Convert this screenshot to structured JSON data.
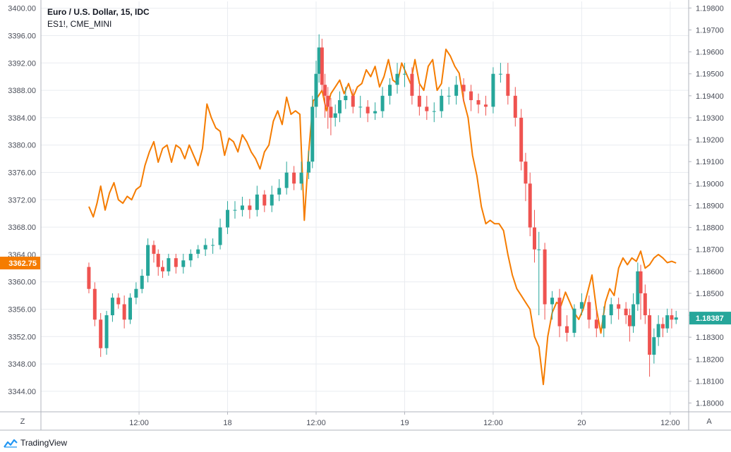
{
  "legend": {
    "main_series": "Euro / U.S. Dollar, 15, IDC",
    "compare_series": "ES1!, CME_MINI"
  },
  "brand": {
    "name": "TradingView",
    "logo_icon": "tradingview-logo-icon"
  },
  "controls": {
    "left_corner": "Z",
    "right_corner": "A"
  },
  "colors": {
    "up": "#26a69a",
    "down": "#ef5350",
    "compare_line": "#f57c00",
    "grid": "#e9ecf0",
    "axis_line": "#b2b5be",
    "left_badge_bg": "#f57c00",
    "right_badge_bg": "#26a69a"
  },
  "chart_data": {
    "type": "line",
    "title": "Euro / U.S. Dollar, 15, IDC",
    "left_axis": {
      "ticks": [
        "3400.00",
        "3396.00",
        "3392.00",
        "3388.00",
        "3384.00",
        "3380.00",
        "3376.00",
        "3372.00",
        "3368.00",
        "3364.00",
        "3360.00",
        "3356.00",
        "3352.00",
        "3348.00",
        "3344.00"
      ],
      "range": [
        3341,
        3401
      ],
      "current_label": "3362.75"
    },
    "right_axis": {
      "ticks": [
        "1.19800",
        "1.19700",
        "1.19600",
        "1.19500",
        "1.19400",
        "1.19300",
        "1.19200",
        "1.19100",
        "1.19000",
        "1.18900",
        "1.18800",
        "1.18700",
        "1.18600",
        "1.18500",
        "1.18400",
        "1.18300",
        "1.18200",
        "1.18100",
        "1.18000"
      ],
      "range": [
        1.1796,
        1.1983
      ],
      "current_label": "1.18387"
    },
    "x_axis": {
      "ticks": [
        "12:00",
        "18",
        "12:00",
        "19",
        "12:00",
        "20",
        "12:00"
      ],
      "tick_hours": [
        12,
        24,
        36,
        48,
        60,
        72,
        84
      ],
      "range_hours": [
        -1.3,
        86.5
      ]
    },
    "grid": true,
    "series": [
      {
        "name": "Euro / U.S. Dollar, 15, IDC",
        "style": "candlestick",
        "axis": "right",
        "x": [
          5.2,
          6.0,
          6.8,
          7.6,
          8.4,
          9.2,
          10.0,
          10.8,
          11.6,
          12.4,
          13.2,
          14.0,
          14.6,
          15.2,
          16.0,
          17.0,
          18.0,
          19.0,
          20.0,
          21.0,
          22.0,
          23.0,
          24.0,
          25.0,
          26.0,
          27.0,
          28.0,
          29.0,
          30.0,
          31.0,
          32.0,
          33.0,
          34.0,
          35.0,
          35.5,
          36.0,
          36.4,
          36.8,
          37.2,
          37.6,
          38.0,
          38.6,
          39.2,
          40.0,
          41.0,
          42.0,
          43.0,
          44.0,
          45.0,
          46.0,
          47.0,
          48.0,
          49.0,
          50.0,
          51.0,
          52.0,
          53.0,
          54.0,
          55.0,
          56.0,
          57.0,
          58.0,
          59.0,
          60.0,
          61.0,
          62.0,
          63.0,
          63.8,
          64.4,
          65.0,
          65.6,
          66.2,
          67.0,
          68.0,
          69.0,
          70.0,
          71.0,
          72.0,
          73.0,
          74.0,
          75.0,
          76.0,
          77.0,
          78.0,
          78.5,
          79.0,
          79.6,
          80.0,
          80.6,
          81.2,
          81.8,
          82.4,
          83.0,
          83.6,
          84.2,
          84.8
        ],
        "open": [
          1.1862,
          1.1852,
          1.1838,
          1.1825,
          1.184,
          1.1848,
          1.1845,
          1.1838,
          1.1848,
          1.1852,
          1.1858,
          1.1872,
          1.1868,
          1.1862,
          1.186,
          1.1866,
          1.1862,
          1.1865,
          1.1868,
          1.187,
          1.1872,
          1.1872,
          1.188,
          1.1888,
          1.1888,
          1.189,
          1.1888,
          1.1895,
          1.189,
          1.1895,
          1.1898,
          1.1905,
          1.19,
          1.1905,
          1.191,
          1.1935,
          1.195,
          1.1962,
          1.1945,
          1.194,
          1.1935,
          1.193,
          1.1932,
          1.1938,
          1.194,
          1.1935,
          1.1935,
          1.1932,
          1.1933,
          1.194,
          1.1945,
          1.195,
          1.195,
          1.194,
          1.1935,
          1.1933,
          1.1933,
          1.194,
          1.194,
          1.1945,
          1.1942,
          1.1938,
          1.1936,
          1.1935,
          1.195,
          1.195,
          1.194,
          1.193,
          1.191,
          1.19,
          1.188,
          1.187,
          1.187,
          1.1845,
          1.1848,
          1.1835,
          1.1832,
          1.1843,
          1.1846,
          1.1838,
          1.1834,
          1.184,
          1.1845,
          1.1843,
          1.184,
          1.1835,
          1.1845,
          1.186,
          1.185,
          1.184,
          1.1822,
          1.183,
          1.1836,
          1.1834,
          1.184,
          1.1838
        ],
        "close": [
          1.1852,
          1.1838,
          1.1825,
          1.184,
          1.1848,
          1.1845,
          1.1838,
          1.1848,
          1.1852,
          1.1858,
          1.1872,
          1.1868,
          1.1862,
          1.186,
          1.1866,
          1.1862,
          1.1865,
          1.1868,
          1.187,
          1.1872,
          1.1872,
          1.188,
          1.1888,
          1.1888,
          1.189,
          1.1888,
          1.1895,
          1.189,
          1.1895,
          1.1898,
          1.1905,
          1.19,
          1.1905,
          1.191,
          1.1935,
          1.195,
          1.1962,
          1.1945,
          1.194,
          1.1935,
          1.193,
          1.1932,
          1.1938,
          1.194,
          1.1935,
          1.1935,
          1.1932,
          1.1933,
          1.194,
          1.1945,
          1.195,
          1.195,
          1.194,
          1.1935,
          1.1933,
          1.1933,
          1.194,
          1.194,
          1.1945,
          1.1942,
          1.1938,
          1.1936,
          1.1935,
          1.195,
          1.195,
          1.194,
          1.193,
          1.191,
          1.19,
          1.188,
          1.187,
          1.187,
          1.1845,
          1.1848,
          1.1835,
          1.1832,
          1.1843,
          1.1846,
          1.1838,
          1.1834,
          1.184,
          1.1845,
          1.1843,
          1.184,
          1.1835,
          1.1845,
          1.186,
          1.185,
          1.184,
          1.1822,
          1.183,
          1.1836,
          1.1834,
          1.184,
          1.1838,
          1.1839
        ],
        "high": [
          1.1864,
          1.1855,
          1.1841,
          1.1842,
          1.185,
          1.185,
          1.1849,
          1.185,
          1.1855,
          1.1861,
          1.1875,
          1.1874,
          1.187,
          1.1865,
          1.1868,
          1.1868,
          1.1868,
          1.187,
          1.1872,
          1.1875,
          1.1875,
          1.1884,
          1.1892,
          1.1892,
          1.1894,
          1.1893,
          1.1899,
          1.1897,
          1.1899,
          1.1902,
          1.191,
          1.1908,
          1.191,
          1.1915,
          1.194,
          1.1956,
          1.1968,
          1.1966,
          1.195,
          1.1944,
          1.1939,
          1.1936,
          1.1942,
          1.1944,
          1.1943,
          1.194,
          1.1938,
          1.1937,
          1.1944,
          1.1948,
          1.1955,
          1.1955,
          1.1953,
          1.1945,
          1.194,
          1.1937,
          1.1943,
          1.1944,
          1.1949,
          1.1948,
          1.1945,
          1.1941,
          1.194,
          1.1953,
          1.1955,
          1.1955,
          1.1944,
          1.1934,
          1.1914,
          1.1905,
          1.1888,
          1.1878,
          1.1873,
          1.1851,
          1.1852,
          1.184,
          1.1845,
          1.185,
          1.1849,
          1.1842,
          1.1844,
          1.1848,
          1.1848,
          1.1846,
          1.1843,
          1.185,
          1.1864,
          1.1863,
          1.1854,
          1.1843,
          1.1834,
          1.184,
          1.1839,
          1.1843,
          1.1843,
          1.1842
        ],
        "low": [
          1.185,
          1.1835,
          1.1821,
          1.1822,
          1.1837,
          1.1843,
          1.1834,
          1.1836,
          1.1845,
          1.185,
          1.1855,
          1.1864,
          1.1858,
          1.1857,
          1.1858,
          1.1859,
          1.1859,
          1.1862,
          1.1866,
          1.1867,
          1.1868,
          1.187,
          1.1877,
          1.1884,
          1.1885,
          1.1884,
          1.1885,
          1.1887,
          1.1887,
          1.1892,
          1.1895,
          1.1897,
          1.1897,
          1.1902,
          1.1907,
          1.193,
          1.1946,
          1.1942,
          1.193,
          1.1925,
          1.1922,
          1.1926,
          1.1928,
          1.1934,
          1.1932,
          1.193,
          1.1928,
          1.1929,
          1.193,
          1.1936,
          1.1941,
          1.1944,
          1.1936,
          1.1931,
          1.1929,
          1.1928,
          1.193,
          1.1936,
          1.1936,
          1.1937,
          1.1933,
          1.1932,
          1.1931,
          1.1932,
          1.1946,
          1.1936,
          1.1926,
          1.1906,
          1.1892,
          1.1876,
          1.1864,
          1.184,
          1.1838,
          1.1838,
          1.183,
          1.1828,
          1.183,
          1.184,
          1.1834,
          1.183,
          1.183,
          1.1836,
          1.1838,
          1.1836,
          1.1828,
          1.1832,
          1.1842,
          1.1838,
          1.1836,
          1.1812,
          1.1818,
          1.1826,
          1.183,
          1.1832,
          1.1834,
          1.1836
        ]
      },
      {
        "name": "ES1!, CME_MINI",
        "style": "line",
        "axis": "left",
        "x": [
          5.2,
          5.8,
          6.3,
          6.8,
          7.4,
          8.0,
          8.6,
          9.2,
          9.8,
          10.4,
          11.0,
          11.6,
          12.2,
          12.8,
          13.4,
          14.0,
          14.6,
          15.2,
          15.8,
          16.4,
          17.0,
          17.6,
          18.2,
          18.8,
          19.4,
          20.0,
          20.6,
          21.2,
          21.8,
          22.4,
          23.0,
          23.6,
          24.2,
          24.8,
          25.4,
          26.0,
          26.6,
          27.2,
          27.8,
          28.4,
          29.0,
          29.6,
          30.2,
          30.8,
          31.4,
          32.0,
          32.6,
          33.2,
          33.8,
          34.4,
          35.0,
          35.6,
          36.2,
          36.8,
          37.4,
          38.0,
          38.6,
          39.2,
          39.8,
          40.4,
          41.0,
          41.6,
          42.2,
          42.8,
          43.4,
          44.0,
          44.6,
          45.2,
          45.8,
          46.4,
          47.0,
          47.6,
          48.2,
          48.8,
          49.4,
          50.0,
          50.6,
          51.2,
          51.8,
          52.4,
          53.0,
          53.6,
          54.2,
          54.8,
          55.4,
          56.0,
          56.6,
          57.2,
          57.8,
          58.4,
          59.0,
          59.6,
          60.2,
          60.8,
          61.4,
          62.0,
          62.6,
          63.2,
          63.8,
          64.4,
          65.0,
          65.6,
          66.2,
          66.8,
          67.4,
          68.0,
          68.6,
          69.2,
          69.8,
          70.4,
          71.0,
          71.6,
          72.2,
          72.8,
          73.4,
          74.0,
          74.6,
          75.2,
          75.8,
          76.4,
          77.0,
          77.6,
          78.2,
          78.8,
          79.4,
          80.0,
          80.6,
          81.2,
          81.8,
          82.4,
          83.0,
          83.6,
          84.2,
          84.8
        ],
        "y": [
          3371.0,
          3369.5,
          3371.5,
          3374.0,
          3370.5,
          3373.0,
          3374.5,
          3372.0,
          3371.5,
          3372.5,
          3372.0,
          3373.5,
          3374.0,
          3377.0,
          3379.0,
          3380.5,
          3377.5,
          3379.5,
          3380.0,
          3377.5,
          3380.0,
          3379.5,
          3378.0,
          3380.0,
          3378.5,
          3377.0,
          3379.5,
          3386.0,
          3384.0,
          3382.5,
          3382.0,
          3378.5,
          3381.0,
          3380.5,
          3379.0,
          3381.5,
          3380.5,
          3379.0,
          3378.0,
          3376.5,
          3379.0,
          3380.0,
          3383.5,
          3385.0,
          3383.0,
          3387.0,
          3384.5,
          3385.0,
          3384.5,
          3369.0,
          3379.0,
          3386.5,
          3387.0,
          3388.0,
          3385.0,
          3387.5,
          3388.5,
          3389.5,
          3387.5,
          3389.0,
          3387.0,
          3388.5,
          3389.0,
          3391.0,
          3390.0,
          3391.5,
          3388.5,
          3390.0,
          3392.5,
          3389.5,
          3389.0,
          3392.0,
          3390.5,
          3389.0,
          3392.5,
          3389.0,
          3388.0,
          3391.5,
          3392.5,
          3388.0,
          3389.0,
          3394.0,
          3393.0,
          3391.5,
          3390.5,
          3386.5,
          3384.0,
          3378.5,
          3375.5,
          3371.0,
          3368.5,
          3369.0,
          3368.5,
          3368.5,
          3367.5,
          3364.0,
          3361.0,
          3359.0,
          3358.0,
          3357.0,
          3356.0,
          3352.0,
          3350.5,
          3345.0,
          3352.0,
          3355.5,
          3357.0,
          3356.5,
          3358.5,
          3357.0,
          3355.5,
          3354.5,
          3356.0,
          3358.5,
          3361.0,
          3356.0,
          3352.5,
          3357.0,
          3359.0,
          3358.0,
          3362.0,
          3363.5,
          3362.5,
          3363.5,
          3363.0,
          3364.5,
          3362.0,
          3362.5,
          3363.5,
          3364.0,
          3363.5,
          3362.8,
          3363.0,
          3362.75
        ]
      }
    ]
  }
}
